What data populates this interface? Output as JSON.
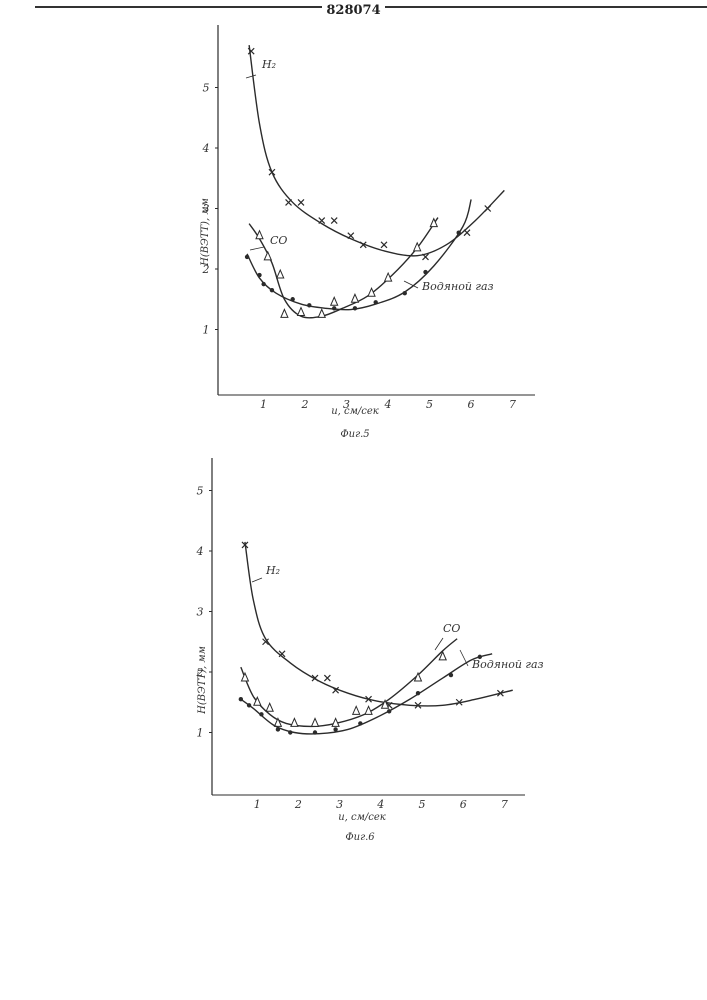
{
  "document": {
    "patent_number": "828074",
    "figure_captions": [
      "Фиг.5",
      "Фиг.6"
    ]
  },
  "chart_data": [
    {
      "type": "line",
      "title": "",
      "caption": "Фиг.5",
      "xlabel": "u, см/сек",
      "ylabel": "H(ВЭТТ), мм",
      "xlim": [
        0,
        7.5
      ],
      "ylim": [
        0,
        6
      ],
      "x_ticks": [
        "1",
        "2",
        "3",
        "4",
        "5",
        "6",
        "7"
      ],
      "y_ticks": [
        "1",
        "2",
        "3",
        "4",
        "5"
      ],
      "grid": false,
      "series": [
        {
          "name": "H₂",
          "marker": "x",
          "points": [
            [
              0.8,
              5.6
            ],
            [
              1.3,
              3.6
            ],
            [
              1.7,
              3.1
            ],
            [
              2.0,
              3.1
            ],
            [
              2.5,
              2.8
            ],
            [
              2.8,
              2.8
            ],
            [
              3.2,
              2.55
            ],
            [
              3.5,
              2.4
            ],
            [
              4.0,
              2.4
            ],
            [
              5.0,
              2.2
            ],
            [
              6.0,
              2.6
            ],
            [
              6.5,
              3.0
            ]
          ],
          "curve": [
            [
              0.75,
              5.7
            ],
            [
              1.0,
              4.4
            ],
            [
              1.3,
              3.6
            ],
            [
              1.8,
              3.1
            ],
            [
              2.5,
              2.75
            ],
            [
              3.2,
              2.5
            ],
            [
              4.0,
              2.3
            ],
            [
              4.8,
              2.22
            ],
            [
              5.5,
              2.4
            ],
            [
              6.2,
              2.8
            ],
            [
              6.9,
              3.3
            ]
          ]
        },
        {
          "name": "CO",
          "marker": "triangle",
          "points": [
            [
              1.0,
              2.55
            ],
            [
              1.2,
              2.2
            ],
            [
              1.5,
              1.9
            ],
            [
              1.6,
              1.25
            ],
            [
              2.0,
              1.28
            ],
            [
              2.5,
              1.25
            ],
            [
              2.8,
              1.45
            ],
            [
              3.3,
              1.5
            ],
            [
              3.7,
              1.6
            ],
            [
              4.1,
              1.85
            ],
            [
              4.8,
              2.35
            ],
            [
              5.2,
              2.75
            ]
          ],
          "curve": [
            [
              0.75,
              2.75
            ],
            [
              1.0,
              2.5
            ],
            [
              1.3,
              2.1
            ],
            [
              1.6,
              1.5
            ],
            [
              2.0,
              1.22
            ],
            [
              2.5,
              1.22
            ],
            [
              3.0,
              1.35
            ],
            [
              3.6,
              1.55
            ],
            [
              4.2,
              1.9
            ],
            [
              4.8,
              2.35
            ],
            [
              5.3,
              2.85
            ]
          ]
        },
        {
          "name": "Водяной газ",
          "marker": "dot",
          "points": [
            [
              0.7,
              2.2
            ],
            [
              1.0,
              1.9
            ],
            [
              1.1,
              1.75
            ],
            [
              1.3,
              1.65
            ],
            [
              1.8,
              1.5
            ],
            [
              2.2,
              1.4
            ],
            [
              2.8,
              1.35
            ],
            [
              3.3,
              1.35
            ],
            [
              3.8,
              1.45
            ],
            [
              4.5,
              1.6
            ],
            [
              5.0,
              1.95
            ],
            [
              5.8,
              2.6
            ]
          ],
          "curve": [
            [
              0.7,
              2.25
            ],
            [
              1.0,
              1.85
            ],
            [
              1.4,
              1.6
            ],
            [
              2.0,
              1.42
            ],
            [
              2.6,
              1.35
            ],
            [
              3.2,
              1.33
            ],
            [
              3.8,
              1.42
            ],
            [
              4.5,
              1.62
            ],
            [
              5.2,
              2.05
            ],
            [
              5.9,
              2.7
            ],
            [
              6.1,
              3.15
            ]
          ]
        }
      ]
    },
    {
      "type": "line",
      "title": "",
      "caption": "Фиг.6",
      "xlabel": "u, см/сек",
      "ylabel": "H(ВЭТТ), мм",
      "xlim": [
        0,
        7.5
      ],
      "ylim": [
        0,
        5.5
      ],
      "x_ticks": [
        "1",
        "2",
        "3",
        "4",
        "5",
        "6",
        "7"
      ],
      "y_ticks": [
        "1",
        "2",
        "3",
        "4",
        "5"
      ],
      "grid": false,
      "series": [
        {
          "name": "H₂",
          "marker": "x",
          "points": [
            [
              0.8,
              4.1
            ],
            [
              1.3,
              2.5
            ],
            [
              1.7,
              2.3
            ],
            [
              2.5,
              1.9
            ],
            [
              2.8,
              1.9
            ],
            [
              3.0,
              1.7
            ],
            [
              3.8,
              1.55
            ],
            [
              4.3,
              1.45
            ],
            [
              5.0,
              1.45
            ],
            [
              6.0,
              1.5
            ],
            [
              7.0,
              1.65
            ]
          ],
          "curve": [
            [
              0.8,
              4.15
            ],
            [
              1.0,
              3.2
            ],
            [
              1.3,
              2.55
            ],
            [
              1.9,
              2.15
            ],
            [
              2.6,
              1.85
            ],
            [
              3.3,
              1.65
            ],
            [
              4.0,
              1.52
            ],
            [
              4.8,
              1.45
            ],
            [
              5.6,
              1.45
            ],
            [
              6.4,
              1.55
            ],
            [
              7.3,
              1.7
            ]
          ]
        },
        {
          "name": "CO",
          "marker": "triangle",
          "points": [
            [
              0.8,
              1.9
            ],
            [
              1.1,
              1.5
            ],
            [
              1.4,
              1.4
            ],
            [
              1.6,
              1.15
            ],
            [
              2.0,
              1.15
            ],
            [
              2.5,
              1.15
            ],
            [
              3.0,
              1.15
            ],
            [
              3.5,
              1.35
            ],
            [
              3.8,
              1.35
            ],
            [
              4.2,
              1.45
            ],
            [
              5.0,
              1.9
            ],
            [
              5.6,
              2.25
            ]
          ],
          "curve": [
            [
              0.7,
              2.08
            ],
            [
              1.0,
              1.6
            ],
            [
              1.4,
              1.3
            ],
            [
              1.8,
              1.15
            ],
            [
              2.4,
              1.1
            ],
            [
              3.0,
              1.15
            ],
            [
              3.7,
              1.3
            ],
            [
              4.3,
              1.55
            ],
            [
              5.0,
              1.95
            ],
            [
              5.6,
              2.35
            ],
            [
              5.95,
              2.55
            ]
          ]
        },
        {
          "name": "Водяной газ",
          "marker": "dot",
          "points": [
            [
              0.7,
              1.55
            ],
            [
              0.9,
              1.45
            ],
            [
              1.2,
              1.3
            ],
            [
              1.6,
              1.05
            ],
            [
              1.9,
              1.0
            ],
            [
              2.5,
              1.0
            ],
            [
              3.0,
              1.05
            ],
            [
              3.6,
              1.15
            ],
            [
              4.3,
              1.35
            ],
            [
              5.0,
              1.65
            ],
            [
              5.8,
              1.95
            ],
            [
              6.5,
              2.25
            ]
          ],
          "curve": [
            [
              0.7,
              1.55
            ],
            [
              1.0,
              1.4
            ],
            [
              1.5,
              1.12
            ],
            [
              2.0,
              1.0
            ],
            [
              2.6,
              0.98
            ],
            [
              3.3,
              1.05
            ],
            [
              4.0,
              1.25
            ],
            [
              4.8,
              1.55
            ],
            [
              5.6,
              1.9
            ],
            [
              6.3,
              2.2
            ],
            [
              6.8,
              2.3
            ]
          ]
        }
      ]
    }
  ]
}
